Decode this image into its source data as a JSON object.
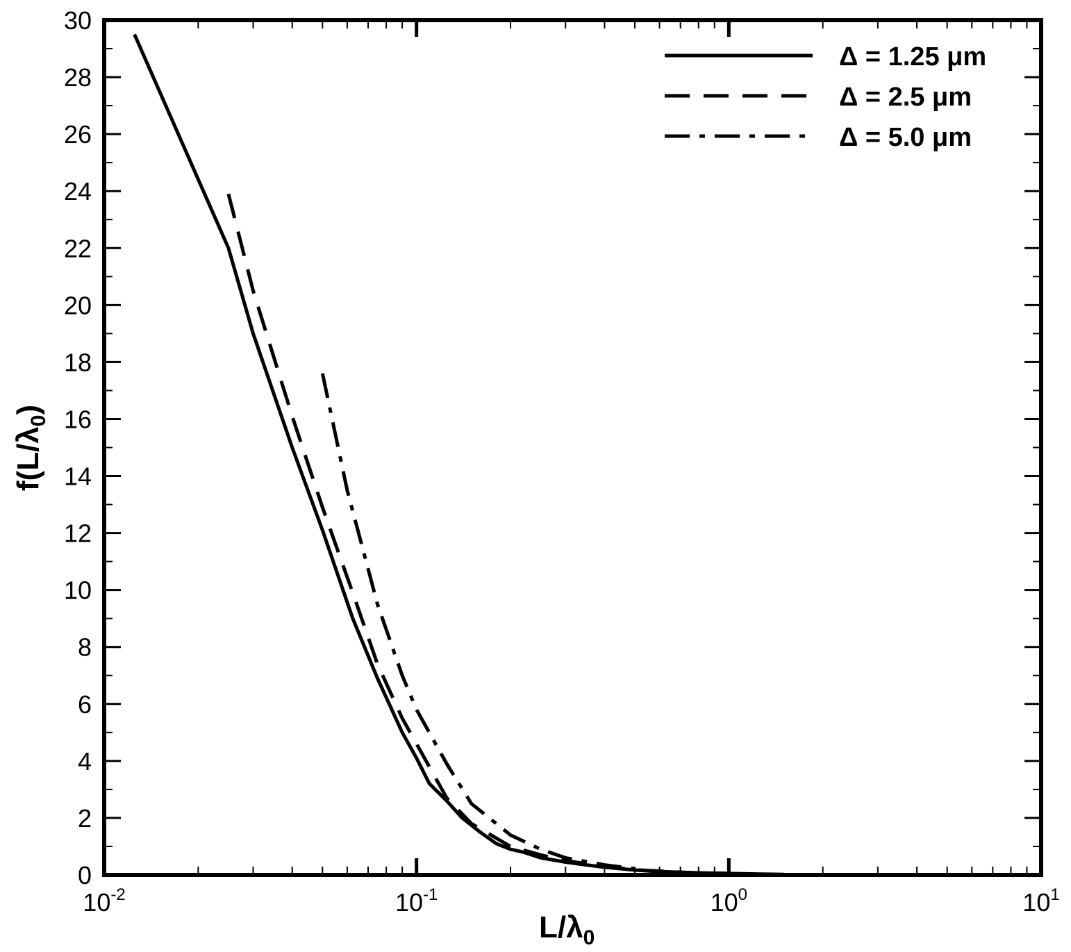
{
  "chart_data": {
    "type": "line",
    "xlabel": {
      "main": "L/λ",
      "sub": "0"
    },
    "ylabel": {
      "main": "f(L/λ",
      "sub": "0",
      "close": ")"
    },
    "x_scale": "log",
    "xlim": [
      0.01,
      10
    ],
    "ylim": [
      0,
      30
    ],
    "grid": false,
    "legend_position": "top-right",
    "x_ticks": [
      {
        "value": 0.01,
        "base": "10",
        "exp": "-2"
      },
      {
        "value": 0.1,
        "base": "10",
        "exp": "-1"
      },
      {
        "value": 1,
        "base": "10",
        "exp": "0"
      },
      {
        "value": 10,
        "base": "10",
        "exp": "1"
      }
    ],
    "y_ticks": [
      "0",
      "2",
      "4",
      "6",
      "8",
      "10",
      "12",
      "14",
      "16",
      "18",
      "20",
      "22",
      "24",
      "26",
      "28",
      "30"
    ],
    "series": [
      {
        "name": "Δ = 1.25 μm",
        "dash": "solid",
        "x": [
          0.0125,
          0.025,
          0.03,
          0.04,
          0.05,
          0.0625,
          0.075,
          0.09,
          0.1,
          0.11,
          0.125,
          0.14,
          0.16,
          0.18,
          0.2,
          0.22,
          0.25,
          0.3,
          0.35,
          0.4,
          0.5,
          0.6,
          0.8,
          1.0,
          1.25,
          1.5
        ],
        "y": [
          29.5,
          22.0,
          19.0,
          15.0,
          12.1,
          9.0,
          6.9,
          5.0,
          4.1,
          3.2,
          2.6,
          2.0,
          1.5,
          1.1,
          0.9,
          0.8,
          0.6,
          0.45,
          0.35,
          0.27,
          0.17,
          0.12,
          0.07,
          0.05,
          0.03,
          0.02
        ]
      },
      {
        "name": "Δ = 2.5 μm",
        "dash": "dashed",
        "x": [
          0.025,
          0.03,
          0.04,
          0.05,
          0.0625,
          0.075,
          0.09,
          0.1,
          0.125,
          0.15,
          0.2,
          0.25,
          0.3,
          0.4,
          0.5,
          0.75,
          1.0
        ],
        "y": [
          23.9,
          20.5,
          16.1,
          12.9,
          9.9,
          7.4,
          5.5,
          4.6,
          2.7,
          1.8,
          1.0,
          0.7,
          0.5,
          0.3,
          0.18,
          0.08,
          0.05
        ]
      },
      {
        "name": "Δ = 5.0 μm",
        "dash": "dashdot",
        "x": [
          0.05,
          0.06,
          0.075,
          0.09,
          0.1,
          0.125,
          0.15,
          0.2,
          0.25,
          0.3,
          0.4,
          0.5
        ],
        "y": [
          17.6,
          13.5,
          9.5,
          7.0,
          5.8,
          3.9,
          2.5,
          1.4,
          0.9,
          0.6,
          0.35,
          0.22
        ]
      }
    ]
  }
}
